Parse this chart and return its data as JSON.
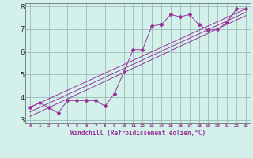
{
  "title": "",
  "xlabel": "Windchill (Refroidissement éolien,°C)",
  "bg_color": "#d4f0eb",
  "line_color": "#993399",
  "grid_color": "#99bbbb",
  "xlim": [
    -0.5,
    23.5
  ],
  "ylim": [
    2.85,
    8.15
  ],
  "xticks": [
    0,
    1,
    2,
    3,
    4,
    5,
    6,
    7,
    8,
    9,
    10,
    11,
    12,
    13,
    14,
    15,
    16,
    17,
    18,
    19,
    20,
    21,
    22,
    23
  ],
  "yticks": [
    3,
    4,
    5,
    6,
    7,
    8
  ],
  "series": [
    [
      0,
      3.55
    ],
    [
      1,
      3.75
    ],
    [
      2,
      3.55
    ],
    [
      3,
      3.3
    ],
    [
      4,
      3.85
    ],
    [
      5,
      3.85
    ],
    [
      6,
      3.85
    ],
    [
      7,
      3.85
    ],
    [
      8,
      3.6
    ],
    [
      9,
      4.15
    ],
    [
      10,
      5.1
    ],
    [
      11,
      6.1
    ],
    [
      12,
      6.1
    ],
    [
      13,
      7.15
    ],
    [
      14,
      7.2
    ],
    [
      15,
      7.65
    ],
    [
      16,
      7.55
    ],
    [
      17,
      7.65
    ],
    [
      18,
      7.2
    ],
    [
      19,
      6.95
    ],
    [
      20,
      7.0
    ],
    [
      21,
      7.3
    ],
    [
      22,
      7.9
    ],
    [
      23,
      7.9
    ]
  ],
  "linear1": [
    [
      0,
      3.55
    ],
    [
      23,
      7.9
    ]
  ],
  "linear2": [
    [
      0,
      3.35
    ],
    [
      23,
      7.75
    ]
  ],
  "linear3": [
    [
      0,
      3.15
    ],
    [
      23,
      7.6
    ]
  ]
}
